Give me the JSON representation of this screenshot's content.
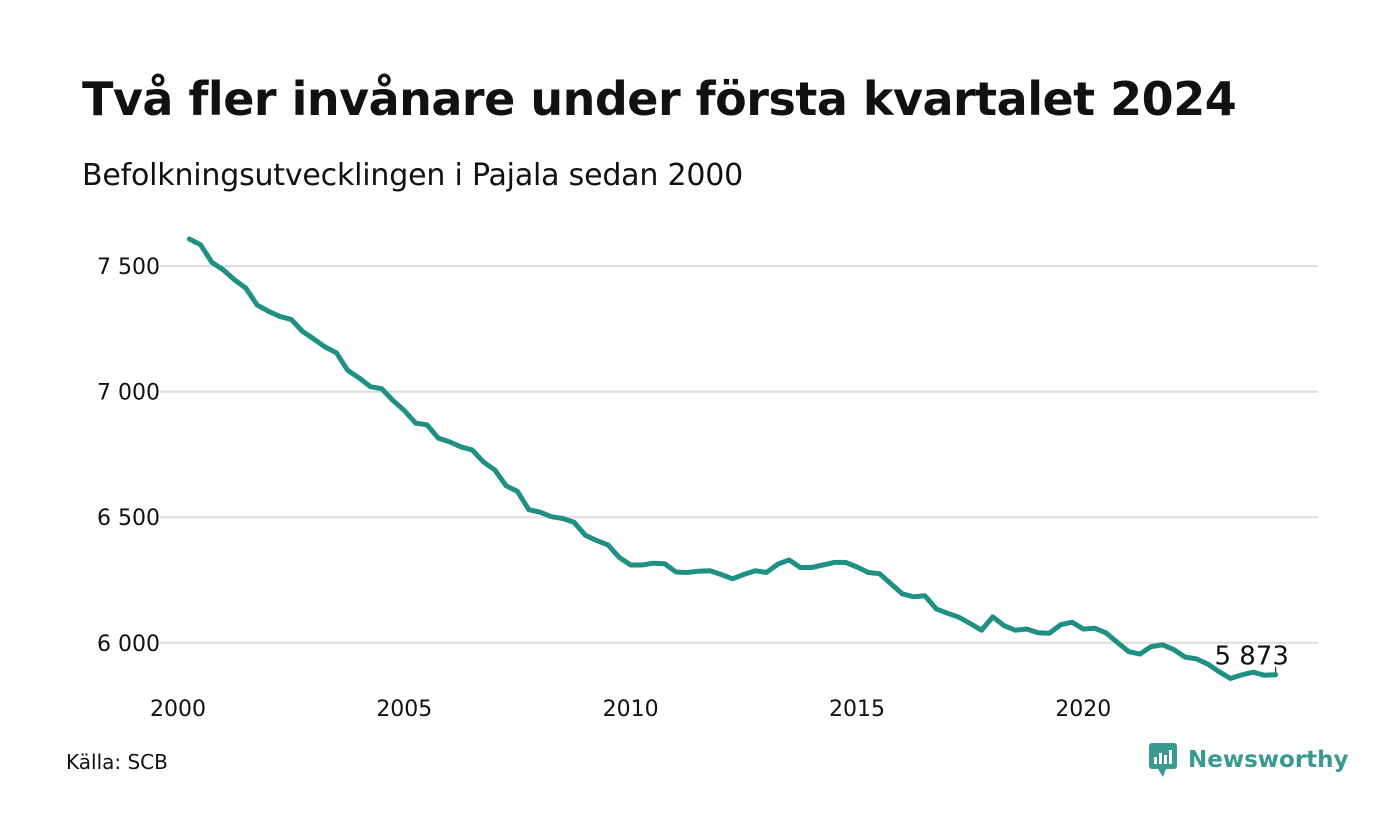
{
  "header": {
    "title": "Två fler invånare under första kvartalet 2024",
    "subtitle": "Befolkningsutvecklingen i Pajala sedan 2000"
  },
  "footer": {
    "source": "Källa: SCB",
    "brand": "Newsworthy",
    "brand_icon": "newsworthy-logo-icon"
  },
  "colors": {
    "line": "#1f9184",
    "grid": "#dddddd",
    "brand": "#3a9a8f"
  },
  "chart_data": {
    "type": "line",
    "title": "Två fler invånare under första kvartalet 2024",
    "subtitle": "Befolkningsutvecklingen i Pajala sedan 2000",
    "xlabel": "",
    "ylabel": "",
    "x_ticks": [
      2000,
      2005,
      2010,
      2015,
      2020
    ],
    "x_tick_labels": [
      "2000",
      "2005",
      "2010",
      "2015",
      "2020"
    ],
    "y_ticks": [
      6000,
      6500,
      7000,
      7500
    ],
    "y_tick_labels": [
      "6 000",
      "6 500",
      "7 000",
      "7 500"
    ],
    "xlim": [
      2000,
      2024.5
    ],
    "ylim": [
      5820,
      7620
    ],
    "grid": true,
    "end_label": "5 873",
    "series": [
      {
        "x": [
          2000.25,
          2000.5,
          2000.75,
          2001.0,
          2001.25,
          2001.5,
          2001.75,
          2002.0,
          2002.25,
          2002.5,
          2002.75,
          2003.0,
          2003.25,
          2003.5,
          2003.75,
          2004.0,
          2004.25,
          2004.5,
          2004.75,
          2005.0,
          2005.25,
          2005.5,
          2005.75,
          2006.0,
          2006.25,
          2006.5,
          2006.75,
          2007.0,
          2007.25,
          2007.5,
          2007.75,
          2008.0,
          2008.25,
          2008.5,
          2008.75,
          2009.0,
          2009.25,
          2009.5,
          2009.75,
          2010.0,
          2010.25,
          2010.5,
          2010.75,
          2011.0,
          2011.25,
          2011.5,
          2011.75,
          2012.0,
          2012.25,
          2012.5,
          2012.75,
          2013.0,
          2013.25,
          2013.5,
          2013.75,
          2014.0,
          2014.25,
          2014.5,
          2014.75,
          2015.0,
          2015.25,
          2015.5,
          2015.75,
          2016.0,
          2016.25,
          2016.5,
          2016.75,
          2017.0,
          2017.25,
          2017.5,
          2017.75,
          2018.0,
          2018.25,
          2018.5,
          2018.75,
          2019.0,
          2019.25,
          2019.5,
          2019.75,
          2020.0,
          2020.25,
          2020.5,
          2020.75,
          2021.0,
          2021.25,
          2021.5,
          2021.75,
          2022.0,
          2022.25,
          2022.5,
          2022.75,
          2023.0,
          2023.25,
          2023.5,
          2023.75,
          2024.0,
          2024.25
        ],
        "values": [
          7608,
          7585,
          7515,
          7485,
          7445,
          7412,
          7345,
          7320,
          7300,
          7288,
          7240,
          7210,
          7178,
          7155,
          7085,
          7055,
          7020,
          7012,
          6965,
          6925,
          6875,
          6868,
          6815,
          6800,
          6780,
          6768,
          6720,
          6688,
          6625,
          6603,
          6530,
          6520,
          6502,
          6495,
          6480,
          6428,
          6407,
          6390,
          6340,
          6310,
          6310,
          6317,
          6315,
          6282,
          6280,
          6285,
          6287,
          6272,
          6255,
          6272,
          6287,
          6280,
          6313,
          6330,
          6300,
          6300,
          6310,
          6320,
          6320,
          6302,
          6280,
          6275,
          6235,
          6195,
          6183,
          6187,
          6135,
          6118,
          6102,
          6077,
          6050,
          6103,
          6068,
          6050,
          6055,
          6040,
          6038,
          6072,
          6082,
          6055,
          6058,
          6040,
          6002,
          5965,
          5955,
          5985,
          5992,
          5973,
          5943,
          5936,
          5915,
          5885,
          5858,
          5872,
          5883,
          5871,
          5873
        ]
      }
    ]
  }
}
